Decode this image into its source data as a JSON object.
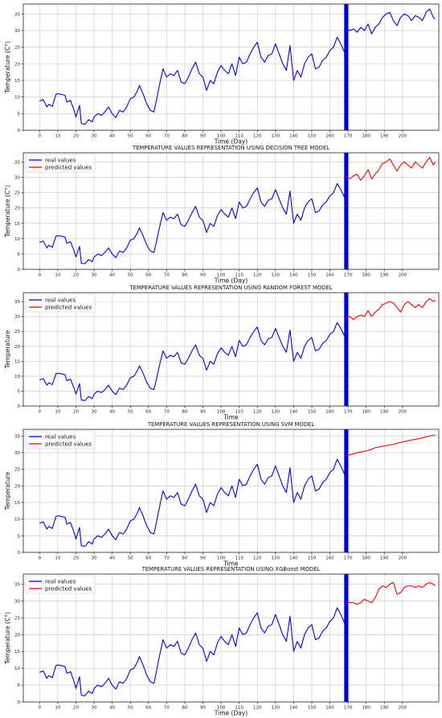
{
  "colors": {
    "real": "#0000ff",
    "predicted": "#ff0000",
    "split_band": "#0000e6",
    "grid": "#c8c8c8"
  },
  "legend": {
    "real_label": "real values",
    "predicted_label": "predicted values"
  },
  "chart_data": [
    {
      "type": "line",
      "title": "",
      "xlabel": "Time (Day)",
      "ylabel": "Temperature (C°)",
      "xlim": [
        -9,
        220
      ],
      "ylim": [
        0,
        38
      ],
      "xticks": [
        0,
        10,
        20,
        30,
        40,
        50,
        60,
        70,
        80,
        90,
        100,
        110,
        120,
        130,
        140,
        150,
        160,
        170,
        180,
        190,
        200
      ],
      "yticks": [
        0,
        5,
        10,
        15,
        20,
        25,
        30,
        35
      ],
      "grid": true,
      "legend": false,
      "split_day": 169,
      "prediction": "none"
    },
    {
      "type": "line",
      "title": "TEMPERATURE VALUES REPRESENTATION USING DECISION TREE MODEL",
      "xlabel": "Time (Day)",
      "ylabel": "Temperature (C°)",
      "xlim": [
        -9,
        220
      ],
      "ylim": [
        0,
        38
      ],
      "xticks": [
        0,
        10,
        20,
        30,
        40,
        50,
        60,
        70,
        80,
        90,
        100,
        110,
        120,
        130,
        140,
        150,
        160,
        170,
        180,
        190,
        200
      ],
      "yticks": [
        0,
        5,
        10,
        15,
        20,
        25,
        30,
        35
      ],
      "grid": true,
      "legend": true,
      "legend_position": "top-left",
      "split_day": 169,
      "prediction": "tree"
    },
    {
      "type": "line",
      "title": "TEMPERATURE VALUES REPRESENTATION USING RANDOM FOREST MODEL",
      "xlabel": "Time",
      "ylabel": "Temperature",
      "xlim": [
        -9,
        220
      ],
      "ylim": [
        0,
        38
      ],
      "xticks": [
        0,
        10,
        20,
        30,
        40,
        50,
        60,
        70,
        80,
        90,
        100,
        110,
        120,
        130,
        140,
        150,
        160,
        170,
        180,
        190,
        200
      ],
      "yticks": [
        0,
        5,
        10,
        15,
        20,
        25,
        30,
        35
      ],
      "grid": true,
      "legend": true,
      "legend_position": "top-left",
      "split_day": 169,
      "prediction": "forest"
    },
    {
      "type": "line",
      "title": "TEMPERATURE VALUES REPRESENTATION USING SVM MODEL",
      "xlabel": "Time",
      "ylabel": "Temperature",
      "xlim": [
        -9,
        220
      ],
      "ylim": [
        0,
        37
      ],
      "xticks": [
        0,
        10,
        20,
        30,
        40,
        50,
        60,
        70,
        80,
        90,
        100,
        110,
        120,
        130,
        140,
        150,
        160,
        170,
        180,
        190,
        200
      ],
      "yticks": [
        0,
        5,
        10,
        15,
        20,
        25,
        30,
        35
      ],
      "grid": true,
      "legend": true,
      "legend_position": "top-left",
      "split_day": 169,
      "prediction": "svm"
    },
    {
      "type": "line",
      "title": "TEMPERATURE VALUES REPRESENTATION USING XGBoost MODEL",
      "xlabel": "Time (Day)",
      "ylabel": "Temperature (C°)",
      "xlim": [
        -9,
        220
      ],
      "ylim": [
        0,
        38
      ],
      "xticks": [
        0,
        10,
        20,
        30,
        40,
        50,
        60,
        70,
        80,
        90,
        100,
        110,
        120,
        130,
        140,
        150,
        160,
        170,
        180,
        190,
        200
      ],
      "yticks": [
        0,
        5,
        10,
        15,
        20,
        25,
        30,
        35
      ],
      "grid": true,
      "legend": true,
      "legend_position": "top-left",
      "split_day": 169,
      "prediction": "xgb"
    }
  ],
  "series": {
    "real_train": {
      "x": [
        0,
        2,
        4,
        5,
        7,
        9,
        10,
        12,
        14,
        15,
        17,
        19,
        20,
        22,
        23,
        25,
        27,
        29,
        30,
        32,
        34,
        36,
        38,
        40,
        42,
        44,
        46,
        48,
        50,
        52,
        54,
        55,
        57,
        59,
        61,
        63,
        64,
        66,
        68,
        70,
        72,
        74,
        76,
        78,
        80,
        82,
        84,
        86,
        88,
        90,
        92,
        94,
        96,
        98,
        100,
        102,
        104,
        106,
        108,
        110,
        112,
        114,
        116,
        118,
        120,
        122,
        124,
        126,
        128,
        130,
        132,
        134,
        136,
        138,
        140,
        142,
        144,
        146,
        148,
        150,
        152,
        154,
        156,
        158,
        160,
        162,
        164,
        166,
        168,
        169
      ],
      "y": [
        8.8,
        9.2,
        7,
        7.8,
        7.2,
        10.8,
        11,
        10.8,
        10.5,
        8.5,
        9,
        6,
        4,
        7.5,
        2,
        1.8,
        3.2,
        2.5,
        4,
        5,
        4.5,
        5.5,
        7,
        5,
        3.8,
        6,
        5.5,
        7,
        9.5,
        10,
        12,
        13.5,
        11,
        8,
        6,
        5.5,
        8,
        13.5,
        18.5,
        16,
        17,
        16.5,
        18,
        14.5,
        14,
        16,
        18.5,
        20.5,
        17,
        16,
        12,
        15,
        14,
        17.5,
        19.5,
        18,
        17,
        20,
        16.5,
        22,
        20,
        20.5,
        23,
        25,
        26.5,
        22,
        20.5,
        22.5,
        23,
        26,
        23,
        20,
        18,
        25.5,
        15,
        18,
        16,
        20,
        22,
        23,
        18.5,
        19,
        21,
        22,
        24,
        25,
        28,
        26,
        23.5,
        30.5
      ]
    },
    "real_test": {
      "x": [
        169,
        171,
        173,
        175,
        177,
        179,
        181,
        183,
        185,
        187,
        189,
        191,
        193,
        195,
        197,
        199,
        201,
        203,
        205,
        207,
        209,
        211,
        213,
        215,
        217,
        218
      ],
      "y": [
        30.5,
        30,
        30.5,
        29.5,
        31,
        30,
        32,
        29,
        31,
        32,
        34,
        35,
        35.5,
        33,
        31.5,
        34,
        35,
        34.5,
        33,
        34.5,
        34,
        33,
        35.5,
        36.5,
        34,
        33.5
      ]
    },
    "tree": {
      "x": [
        169,
        171,
        173,
        175,
        177,
        179,
        181,
        183,
        185,
        187,
        189,
        191,
        193,
        195,
        197,
        199,
        201,
        203,
        205,
        207,
        209,
        211,
        213,
        215,
        217,
        218
      ],
      "y": [
        30,
        29.5,
        30.5,
        31,
        29,
        30.5,
        32.5,
        29.5,
        31,
        32.5,
        34.5,
        35,
        36,
        34,
        32,
        34,
        35,
        34,
        33,
        35,
        34,
        33,
        35,
        36.5,
        34,
        35
      ]
    },
    "forest": {
      "x": [
        169,
        171,
        173,
        175,
        177,
        179,
        181,
        183,
        185,
        187,
        189,
        191,
        193,
        195,
        197,
        199,
        201,
        203,
        205,
        207,
        209,
        211,
        213,
        215,
        217,
        218
      ],
      "y": [
        29.5,
        30,
        29,
        30,
        30.5,
        30,
        32,
        30,
        31.5,
        32.5,
        34,
        34.5,
        35,
        34.5,
        33,
        31.5,
        34,
        35,
        34,
        33,
        34,
        33,
        35,
        36,
        35,
        35.5
      ]
    },
    "svm": {
      "x": [
        169,
        175,
        180,
        183,
        185,
        190,
        195,
        200,
        205,
        210,
        215,
        218
      ],
      "y": [
        29,
        30,
        30.5,
        31,
        31.5,
        32,
        32.5,
        33.2,
        33.8,
        34.3,
        35,
        35.3
      ]
    },
    "xgb": {
      "x": [
        169,
        171,
        173,
        175,
        177,
        179,
        181,
        183,
        185,
        187,
        189,
        191,
        193,
        195,
        197,
        199,
        201,
        203,
        205,
        207,
        209,
        211,
        213,
        215,
        217,
        218
      ],
      "y": [
        30,
        29.5,
        29.5,
        29,
        29.5,
        30.5,
        30,
        29.5,
        31,
        33.5,
        34.5,
        34,
        35,
        35.5,
        32,
        32.5,
        34,
        34.5,
        34.5,
        34,
        34.5,
        34,
        35,
        35.5,
        35,
        34.5
      ]
    }
  }
}
